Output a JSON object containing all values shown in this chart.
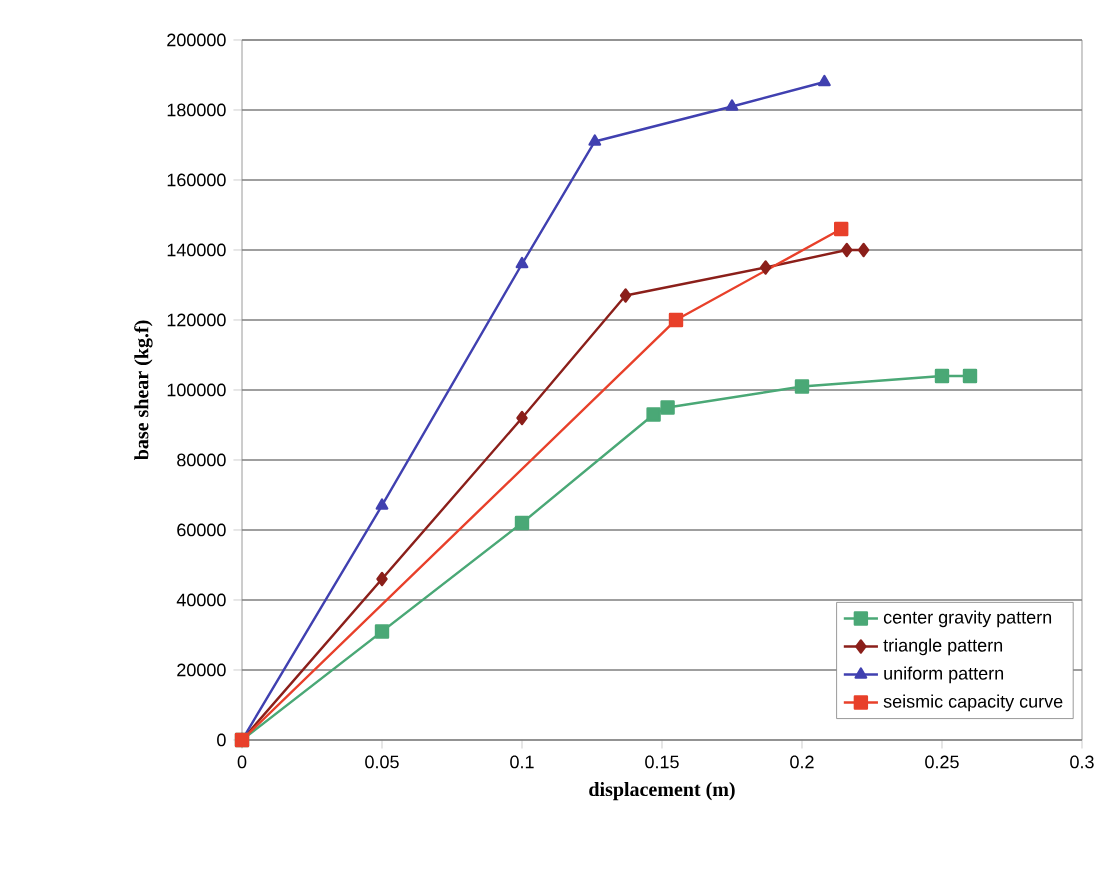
{
  "chart_data": {
    "type": "line",
    "xlabel": "displacement (m)",
    "ylabel": "base shear (kg.f)",
    "xlim": [
      0,
      0.3
    ],
    "xticks": [
      0,
      0.05,
      0.1,
      0.15,
      0.2,
      0.25,
      0.3
    ],
    "ylim": [
      0,
      200000
    ],
    "yticks": [
      0,
      20000,
      40000,
      60000,
      80000,
      100000,
      120000,
      140000,
      160000,
      180000,
      200000
    ],
    "grid": "y",
    "legend": "bottom right",
    "series": [
      {
        "name": "center gravity pattern",
        "color": "#4aa876",
        "marker": "square",
        "x": [
          0,
          0.05,
          0.1,
          0.147,
          0.152,
          0.2,
          0.25,
          0.26
        ],
        "values": [
          0,
          31000,
          62000,
          93000,
          95000,
          101000,
          104000,
          104000
        ]
      },
      {
        "name": "triangle pattern",
        "color": "#8b1f1a",
        "marker": "diamond",
        "x": [
          0,
          0.05,
          0.1,
          0.137,
          0.187,
          0.216,
          0.222
        ],
        "values": [
          0,
          46000,
          92000,
          127000,
          135000,
          140000,
          140000
        ]
      },
      {
        "name": "uniform pattern",
        "color": "#4040b0",
        "marker": "triangle",
        "x": [
          0,
          0.05,
          0.1,
          0.126,
          0.175,
          0.208
        ],
        "values": [
          0,
          67000,
          136000,
          171000,
          181000,
          188000
        ]
      },
      {
        "name": "seismic capacity curve",
        "color": "#e8402a",
        "marker": "square",
        "x": [
          0,
          0.155,
          0.214
        ],
        "values": [
          0,
          120000,
          146000
        ]
      }
    ]
  }
}
